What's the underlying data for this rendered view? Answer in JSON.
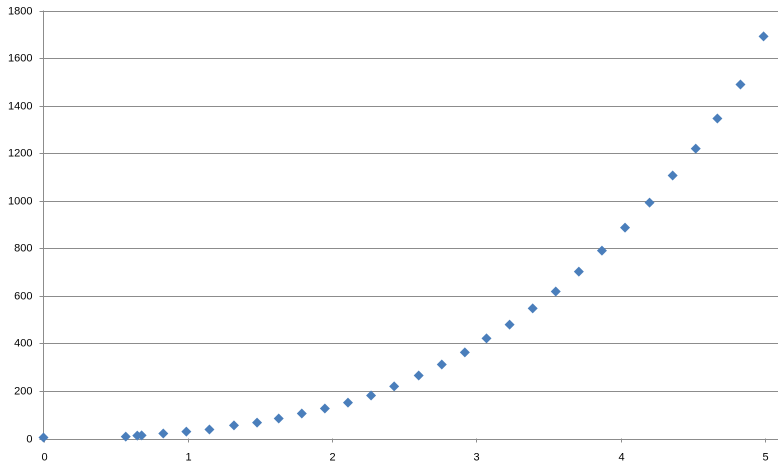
{
  "chart_data": {
    "type": "scatter",
    "series": [
      {
        "color": "#4a7ebb",
        "x": [
          0,
          0.57,
          0.65,
          0.68,
          0.83,
          0.99,
          1.15,
          1.32,
          1.48,
          1.63,
          1.79,
          1.95,
          2.11,
          2.27,
          2.43,
          2.6,
          2.76,
          2.92,
          3.07,
          3.23,
          3.39,
          3.55,
          3.71,
          3.87,
          4.03,
          4.2,
          4.36,
          4.52,
          4.67,
          4.83,
          4.99
        ],
        "values": [
          4,
          8,
          12,
          13,
          21,
          29,
          38,
          55,
          67,
          84,
          105,
          126,
          151,
          181,
          219,
          265,
          311,
          362,
          421,
          479,
          547,
          618,
          702,
          790,
          887,
          992,
          1106,
          1219,
          1346,
          1489,
          1691
        ]
      }
    ],
    "xlim": [
      0,
      5
    ],
    "xticks": [
      0,
      1,
      2,
      3,
      4,
      5
    ],
    "ylim": [
      0,
      1800
    ],
    "yticks": [
      0,
      200,
      400,
      600,
      800,
      1000,
      1200,
      1400,
      1600,
      1800
    ],
    "grid": true
  }
}
